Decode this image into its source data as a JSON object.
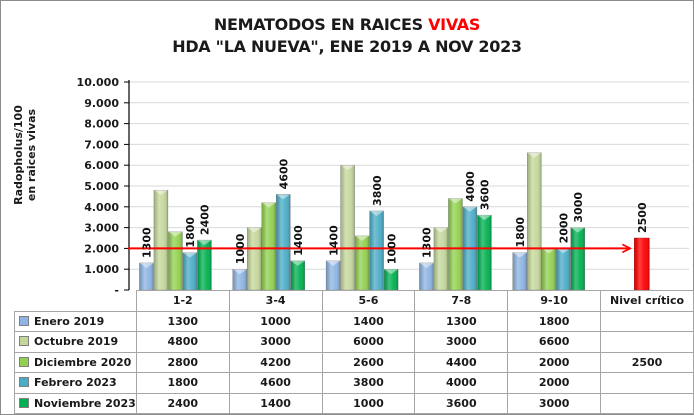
{
  "chart_data": {
    "type": "bar",
    "title": "NEMATODOS EN RAICES VIVAS",
    "title_plain": "NEMATODOS EN RAICES ",
    "title_highlight": "VIVAS",
    "subtitle": "HDA \"LA NUEVA\", ENE 2019 A NOV 2023",
    "ylabel_line1": "Radopholus/100",
    "ylabel_line2": "en raices vivas",
    "xlabel": "",
    "ylim": [
      0,
      10000
    ],
    "yticks": [
      0,
      1000,
      2000,
      3000,
      4000,
      5000,
      6000,
      7000,
      8000,
      9000,
      10000
    ],
    "ytick_labels": [
      "-",
      "1.000",
      "2.000",
      "3.000",
      "4.000",
      "5.000",
      "6.000",
      "7.000",
      "8.000",
      "9.000",
      "10.000"
    ],
    "grid": true,
    "categories": [
      "1-2",
      "3-4",
      "5-6",
      "7-8",
      "9-10",
      "Nivel crítico"
    ],
    "series": [
      {
        "name": "Enero 2019",
        "color": "#8db4e2",
        "values": [
          1300,
          1000,
          1400,
          1300,
          1800,
          null
        ],
        "labeled": true
      },
      {
        "name": "Octubre 2019",
        "color": "#c4d79b",
        "values": [
          4800,
          3000,
          6000,
          3000,
          6600,
          null
        ],
        "labeled": false
      },
      {
        "name": "Diciembre 2020",
        "color": "#92d050",
        "values": [
          2800,
          4200,
          2600,
          4400,
          2000,
          2500
        ],
        "labeled": false
      },
      {
        "name": "Febrero 2023",
        "color": "#4bacc6",
        "values": [
          1800,
          4600,
          3800,
          4000,
          2000,
          null
        ],
        "labeled": true
      },
      {
        "name": "Noviembre 2023",
        "color": "#00b050",
        "values": [
          2400,
          1400,
          1000,
          3600,
          3000,
          null
        ],
        "labeled": true
      }
    ],
    "critical_bar": {
      "category": "Nivel crítico",
      "value": 2500,
      "color": "#ff0000",
      "label": "2500"
    },
    "reference_line": {
      "value": 2000,
      "color": "#ff0000",
      "arrow": true
    },
    "data_table": true,
    "legend": "data-table-left"
  }
}
